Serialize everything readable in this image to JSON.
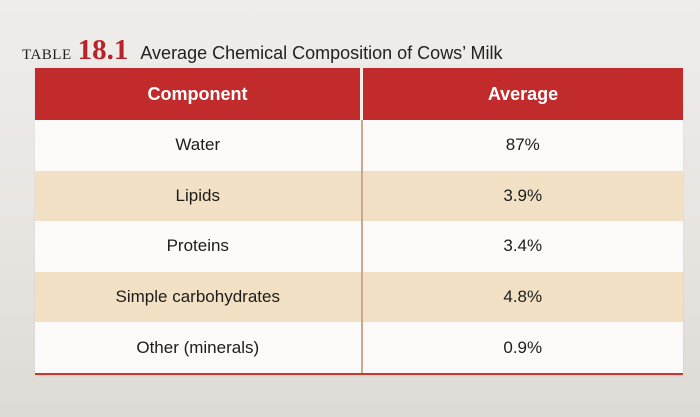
{
  "caption": {
    "label": "TABLE",
    "number": "18.1",
    "title": "Average Chemical Composition of Cows’ Milk"
  },
  "table": {
    "headers": [
      "Component",
      "Average"
    ],
    "rows": [
      {
        "component": "Water",
        "average": "87%"
      },
      {
        "component": "Lipids",
        "average": "3.9%"
      },
      {
        "component": "Proteins",
        "average": "3.4%"
      },
      {
        "component": "Simple carbohydrates",
        "average": "4.8%"
      },
      {
        "component": "Other (minerals)",
        "average": "0.9%"
      }
    ]
  },
  "colors": {
    "header_red": "#c12b2b",
    "row_tan": "#f2e0c4",
    "row_white": "#fbfaf8"
  }
}
